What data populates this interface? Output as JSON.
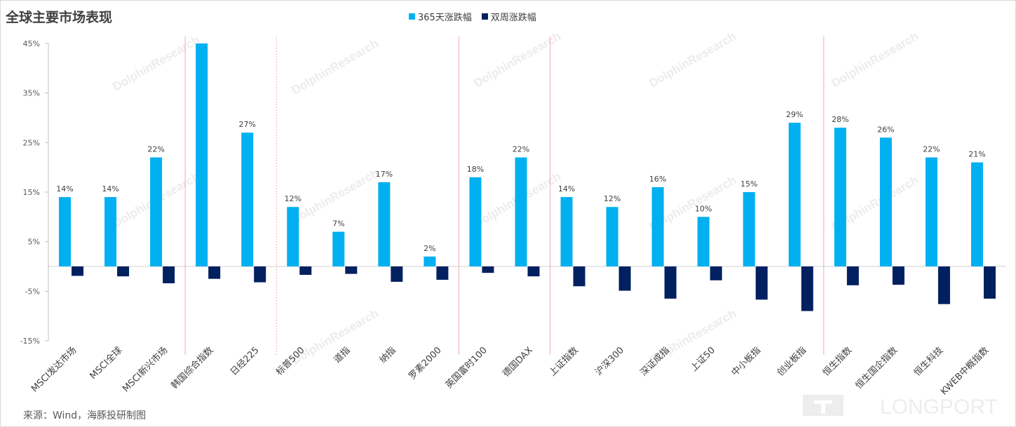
{
  "title": "全球主要市场表现",
  "source": "来源：Wind，海豚投研制图",
  "watermark": "DolphinResearch",
  "brand": "LONGPORT",
  "colors": {
    "series1": "#00b0f0",
    "series2": "#002060",
    "divider": "#f4a9a9",
    "axis": "#bfbfbf",
    "text": "#404040"
  },
  "chart_data": {
    "type": "bar",
    "categories": [
      "MSCI发达市场",
      "MSCI全球",
      "MSCI新兴市场",
      "韩国综合指数",
      "日经225",
      "标普500",
      "道指",
      "纳指",
      "罗素2000",
      "英国富时100",
      "德国DAX",
      "上证指数",
      "沪深300",
      "深证成指",
      "上证50",
      "中小板指",
      "创业板指",
      "恒生指数",
      "恒生国企指数",
      "恒生科技",
      "KWEB中概指数"
    ],
    "series": [
      {
        "name": "365天涨跌幅",
        "values": [
          14,
          14,
          22,
          45,
          27,
          12,
          7,
          17,
          2,
          18,
          22,
          14,
          12,
          16,
          10,
          15,
          29,
          28,
          26,
          22,
          21
        ],
        "labels": [
          "14%",
          "14%",
          "22%",
          "",
          "27%",
          "12%",
          "7%",
          "17%",
          "2%",
          "18%",
          "22%",
          "14%",
          "12%",
          "16%",
          "10%",
          "15%",
          "29%",
          "28%",
          "26%",
          "22%",
          "21%"
        ]
      },
      {
        "name": "双周涨跌幅",
        "values": [
          -1.9,
          -2.0,
          -3.4,
          -2.5,
          -3.2,
          -1.7,
          -1.5,
          -3.1,
          -2.7,
          -1.3,
          -2.0,
          -4.0,
          -4.9,
          -6.5,
          -2.8,
          -6.7,
          -9.0,
          -3.8,
          -3.7,
          -7.6,
          -6.5
        ]
      }
    ],
    "y_ticks": [
      "45%",
      "35%",
      "25%",
      "15%",
      "5%",
      "-5%",
      "-15%"
    ],
    "ylim": [
      -15,
      45
    ],
    "group_dividers_after": [
      "MSCI新兴市场",
      "日经225",
      "罗素2000",
      "德国DAX",
      "创业板指"
    ],
    "legend_position": "top-center",
    "grid": false
  }
}
